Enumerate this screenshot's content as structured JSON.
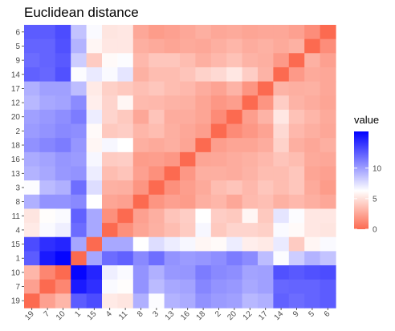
{
  "chart_data": {
    "type": "heatmap",
    "title": "Euclidean distance",
    "xlabel": "",
    "ylabel": "",
    "x_categories": [
      "19",
      "7",
      "10",
      "1",
      "15",
      "4",
      "11",
      "8",
      "3",
      "13",
      "16",
      "18",
      "2",
      "20",
      "12",
      "17",
      "14",
      "9",
      "5",
      "6"
    ],
    "y_categories": [
      "6",
      "5",
      "9",
      "14",
      "17",
      "12",
      "20",
      "2",
      "18",
      "16",
      "13",
      "3",
      "8",
      "11",
      "4",
      "15",
      "1",
      "10",
      "7",
      "19"
    ],
    "values": [
      [
        12.5,
        12.5,
        13.1,
        8.6,
        6.5,
        5.2,
        5.3,
        2.6,
        2.1,
        2.3,
        2.6,
        2.9,
        2.6,
        2.7,
        2.5,
        2.6,
        2.6,
        2.3,
        1.5,
        0
      ],
      [
        12.2,
        12.2,
        12.9,
        9.2,
        5.9,
        5.3,
        5.3,
        2.9,
        2.7,
        2.5,
        2.7,
        2.6,
        2.9,
        3.2,
        2.8,
        3.0,
        2.7,
        3.0,
        0,
        1.5
      ],
      [
        11.9,
        12.2,
        12.6,
        8.2,
        4.1,
        6.1,
        6.4,
        3.3,
        3.9,
        3.9,
        3.5,
        2.9,
        3.3,
        3.7,
        3.1,
        2.9,
        2.0,
        0,
        3.0,
        2.3
      ],
      [
        12.3,
        12.1,
        12.9,
        6.4,
        7.1,
        6.5,
        7.3,
        3.0,
        3.5,
        3.5,
        3.8,
        4.4,
        4.7,
        5.3,
        4.2,
        3.1,
        0,
        2.0,
        2.7,
        2.6
      ],
      [
        9.3,
        9.9,
        9.9,
        8.8,
        5.4,
        4.3,
        4.0,
        3.6,
        3.9,
        3.5,
        3.3,
        2.8,
        2.4,
        3.1,
        1.8,
        0,
        3.1,
        2.9,
        3.0,
        2.6
      ],
      [
        9.0,
        9.6,
        9.8,
        10.7,
        5.6,
        4.5,
        5.9,
        3.4,
        3.3,
        3.1,
        3.0,
        2.5,
        1.9,
        2.2,
        0,
        1.8,
        4.2,
        3.1,
        2.8,
        2.5
      ],
      [
        9.9,
        10.2,
        10.6,
        11.3,
        7.0,
        4.5,
        4.0,
        2.6,
        3.8,
        2.8,
        2.8,
        2.5,
        1.4,
        0,
        2.2,
        3.1,
        5.3,
        3.7,
        3.2,
        2.7
      ],
      [
        10.1,
        10.4,
        10.8,
        10.6,
        6.1,
        4.0,
        4.2,
        3.2,
        3.5,
        2.9,
        2.6,
        2.2,
        0,
        1.4,
        1.9,
        2.4,
        4.7,
        3.3,
        2.9,
        2.6
      ],
      [
        10.5,
        10.9,
        11.3,
        10.3,
        5.9,
        6.6,
        6.3,
        2.9,
        2.7,
        2.9,
        2.5,
        0,
        2.2,
        2.5,
        2.5,
        2.8,
        4.4,
        2.9,
        2.6,
        2.9
      ],
      [
        9.5,
        9.8,
        10.3,
        10.1,
        6.6,
        4.1,
        4.2,
        2.1,
        2.2,
        1.9,
        0,
        2.5,
        2.6,
        2.8,
        3.0,
        3.3,
        3.8,
        3.5,
        2.7,
        2.6
      ],
      [
        9.2,
        9.6,
        10.2,
        10.4,
        7.0,
        3.5,
        3.8,
        2.3,
        1.6,
        0,
        1.9,
        2.9,
        2.9,
        2.8,
        3.1,
        3.5,
        3.5,
        3.9,
        2.5,
        2.3
      ],
      [
        6.4,
        8.9,
        9.3,
        11.8,
        7.6,
        3.0,
        2.9,
        1.8,
        0,
        1.6,
        2.2,
        2.7,
        3.5,
        3.8,
        3.3,
        3.9,
        3.5,
        3.9,
        2.7,
        2.1
      ],
      [
        9.3,
        10.4,
        10.4,
        10.8,
        6.3,
        2.5,
        2.3,
        0,
        1.8,
        2.3,
        2.1,
        2.9,
        3.2,
        2.6,
        3.4,
        3.6,
        3.0,
        3.3,
        2.9,
        2.6
      ],
      [
        5.2,
        6.2,
        6.5,
        12.3,
        9.6,
        1.6,
        0,
        2.3,
        2.9,
        3.8,
        4.2,
        6.3,
        4.2,
        4.0,
        5.9,
        4.0,
        7.3,
        6.4,
        5.3,
        5.3
      ],
      [
        5.4,
        6.5,
        6.9,
        11.9,
        9.6,
        0,
        1.6,
        2.5,
        3.0,
        3.5,
        4.1,
        6.6,
        4.0,
        4.5,
        4.5,
        4.3,
        6.5,
        6.1,
        5.3,
        5.2
      ],
      [
        13.1,
        14.2,
        14.6,
        9.7,
        0,
        9.6,
        9.6,
        6.3,
        7.6,
        7.0,
        6.6,
        5.9,
        6.1,
        7.0,
        5.6,
        5.4,
        7.1,
        4.1,
        5.9,
        6.5
      ],
      [
        12.5,
        15.0,
        15.8,
        0,
        9.7,
        11.9,
        12.3,
        10.8,
        11.8,
        10.4,
        10.1,
        10.3,
        10.6,
        11.3,
        10.7,
        8.8,
        6.4,
        8.2,
        9.2,
        8.6
      ],
      [
        3.2,
        1.2,
        0,
        15.8,
        14.6,
        6.9,
        6.5,
        10.4,
        9.3,
        10.2,
        10.3,
        11.3,
        10.8,
        10.6,
        9.8,
        9.9,
        12.9,
        12.6,
        12.9,
        13.1
      ],
      [
        2.3,
        0,
        1.2,
        15.0,
        14.2,
        6.5,
        6.2,
        10.4,
        8.9,
        9.6,
        9.8,
        10.9,
        10.4,
        10.2,
        9.6,
        9.9,
        12.1,
        12.2,
        12.2,
        12.5
      ],
      [
        0,
        2.3,
        3.2,
        12.5,
        13.1,
        5.4,
        5.2,
        9.3,
        6.4,
        9.2,
        9.5,
        10.5,
        10.1,
        9.9,
        9.0,
        9.3,
        12.3,
        11.9,
        12.2,
        12.5
      ]
    ],
    "scale": {
      "low": "#fc6a50",
      "mid": "#ffffff",
      "high": "#0000ff",
      "midpoint": 6.3,
      "limits": [
        0,
        16
      ]
    },
    "legend": {
      "title": "value",
      "breaks": [
        0,
        5,
        10
      ],
      "position": "right"
    },
    "grid": false
  }
}
